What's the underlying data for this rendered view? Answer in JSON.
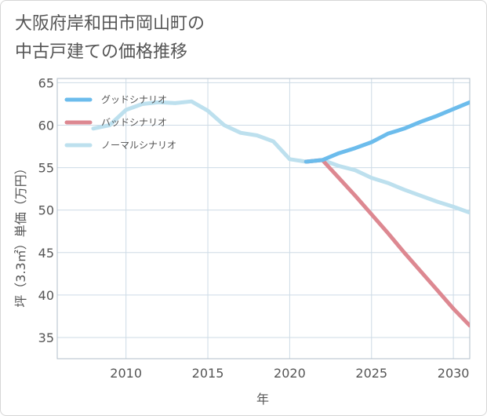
{
  "title_lines": [
    "大阪府岸和田市岡山町の",
    "中古戸建ての価格推移"
  ],
  "chart_data": {
    "type": "line",
    "xlabel": "年",
    "ylabel": "坪（3.3㎡）単価（万円）",
    "xlim": [
      2005.8,
      2031
    ],
    "ylim": [
      32.5,
      65.5
    ],
    "xticks": [
      2010,
      2015,
      2020,
      2025,
      2030
    ],
    "yticks": [
      35,
      40,
      45,
      50,
      55,
      60,
      65
    ],
    "grid": true,
    "legend_position": "top-left",
    "series": [
      {
        "name": "グッドシナリオ",
        "color": "#6cbcec",
        "x": [
          2021,
          2022,
          2023,
          2024,
          2025,
          2026,
          2027,
          2028,
          2029,
          2030,
          2031
        ],
        "y": [
          55.7,
          55.9,
          56.7,
          57.3,
          58.0,
          59.0,
          59.6,
          60.4,
          61.1,
          61.9,
          62.7
        ]
      },
      {
        "name": "バッドシナリオ",
        "color": "#dd8891",
        "x": [
          2021,
          2022,
          2023,
          2024,
          2025,
          2026,
          2027,
          2028,
          2029,
          2030,
          2031
        ],
        "y": [
          55.7,
          55.9,
          53.8,
          51.7,
          49.5,
          47.3,
          45.0,
          42.8,
          40.6,
          38.4,
          36.4
        ]
      },
      {
        "name": "ノーマルシナリオ",
        "color": "#bde0ee",
        "x": [
          2008,
          2009,
          2010,
          2011,
          2012,
          2013,
          2014,
          2015,
          2016,
          2017,
          2018,
          2019,
          2020,
          2021,
          2022,
          2023,
          2024,
          2025,
          2026,
          2027,
          2028,
          2029,
          2030,
          2031
        ],
        "y": [
          59.6,
          60.0,
          61.8,
          62.5,
          62.7,
          62.6,
          62.8,
          61.7,
          60.0,
          59.1,
          58.8,
          58.1,
          56.0,
          55.7,
          55.9,
          55.2,
          54.7,
          53.8,
          53.2,
          52.4,
          51.7,
          51.0,
          50.4,
          49.7
        ]
      }
    ]
  }
}
